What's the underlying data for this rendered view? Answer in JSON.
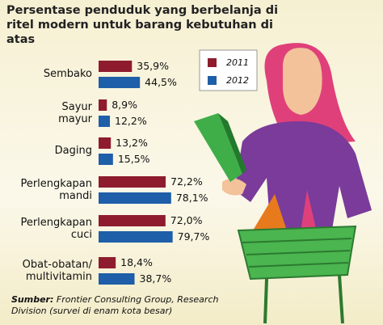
{
  "chart_data": {
    "type": "grouped-hbar",
    "title": "Persentase penduduk yang berbelanja di ritel modern untuk barang kebutuhan di atas",
    "categories": [
      "Sembako",
      "Sayur\nmayur",
      "Daging",
      "Perlengkapan\nmandi",
      "Perlengkapan\ncuci",
      "Obat-obatan/\nmultivitamin"
    ],
    "series": [
      {
        "name": "2011",
        "color": "#8e1c2e",
        "values": [
          35.9,
          8.9,
          13.2,
          72.2,
          72.0,
          18.4
        ],
        "value_labels": [
          "35,9%",
          "8,9%",
          "13,2%",
          "72,2%",
          "72,0%",
          "18,4%"
        ]
      },
      {
        "name": "2012",
        "color": "#1f5ea8",
        "values": [
          44.5,
          12.2,
          15.5,
          78.1,
          79.7,
          38.7
        ],
        "value_labels": [
          "44,5%",
          "12,2%",
          "15,5%",
          "78,1%",
          "79,7%",
          "38,7%"
        ]
      }
    ],
    "source_label": "Sumber:",
    "source": "Frontier Consulting Group, Research Division (survei di enam kota besar)"
  }
}
